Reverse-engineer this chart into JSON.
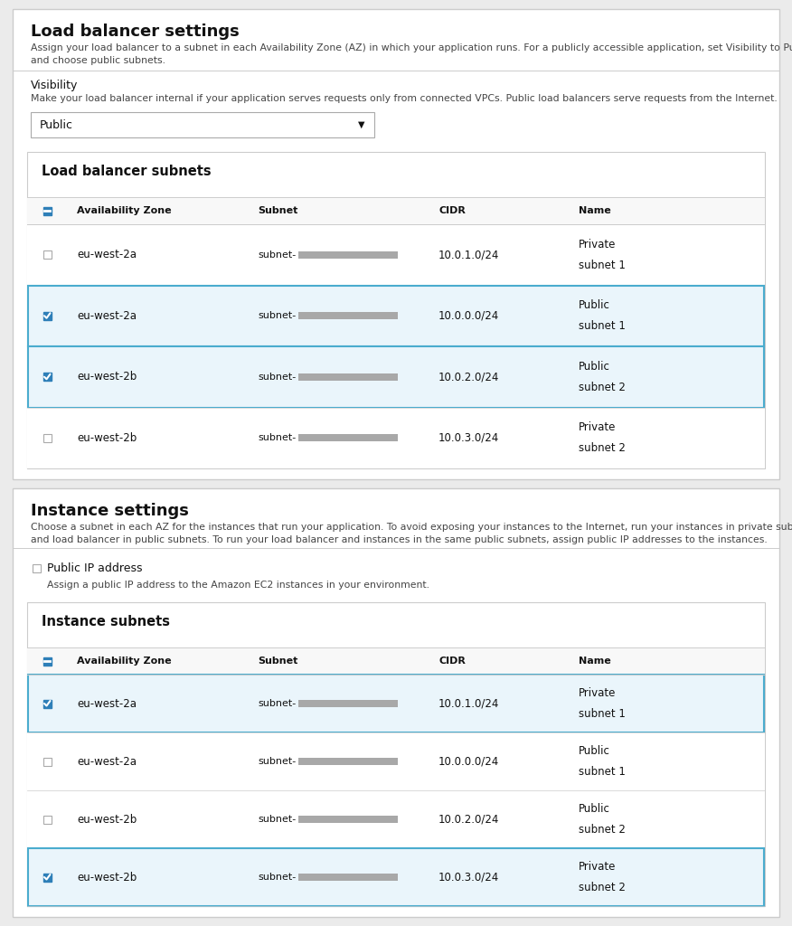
{
  "bg_color": "#ebebeb",
  "panel_bg": "#ffffff",
  "panel_border": "#cccccc",
  "table_bg": "#ffffff",
  "table_border": "#cccccc",
  "selected_row_bg": "#eaf5fb",
  "selected_row_border": "#4aacce",
  "header_bg": "#f8f8f8",
  "cb_blue": "#2e7fb8",
  "cb_border": "#aaaaaa",
  "text_dark": "#111111",
  "text_body": "#444444",
  "text_light": "#666666",
  "dropdown_border": "#aaaaaa",
  "subnet_bar_color": "#a8a8a8",
  "lb_section": {
    "title": "Load balancer settings",
    "desc1": "Assign your load balancer to a subnet in each Availability Zone (AZ) in which your application runs. For a publicly accessible application, set Visibility to Public",
    "desc2": "and choose public subnets.",
    "vis_label": "Visibility",
    "vis_hint": "Make your load balancer internal if your application serves requests only from connected VPCs. Public load balancers serve requests from the Internet.",
    "dropdown_val": "Public",
    "table_title": "Load balancer subnets",
    "col_headers": [
      "Availability Zone",
      "Subnet",
      "CIDR",
      "Name"
    ],
    "rows": [
      {
        "checked": false,
        "az": "eu-west-2a",
        "cidr": "10.0.1.0/24",
        "name1": "Private",
        "name2": "subnet 1",
        "selected": false
      },
      {
        "checked": true,
        "az": "eu-west-2a",
        "cidr": "10.0.0.0/24",
        "name1": "Public",
        "name2": "subnet 1",
        "selected": true
      },
      {
        "checked": true,
        "az": "eu-west-2b",
        "cidr": "10.0.2.0/24",
        "name1": "Public",
        "name2": "subnet 2",
        "selected": true
      },
      {
        "checked": false,
        "az": "eu-west-2b",
        "cidr": "10.0.3.0/24",
        "name1": "Private",
        "name2": "subnet 2",
        "selected": false
      }
    ]
  },
  "inst_section": {
    "title": "Instance settings",
    "desc1": "Choose a subnet in each AZ for the instances that run your application. To avoid exposing your instances to the Internet, run your instances in private subnets",
    "desc2": "and load balancer in public subnets. To run your load balancer and instances in the same public subnets, assign public IP addresses to the instances.",
    "pip_label": "Public IP address",
    "pip_hint": "Assign a public IP address to the Amazon EC2 instances in your environment.",
    "table_title": "Instance subnets",
    "col_headers": [
      "Availability Zone",
      "Subnet",
      "CIDR",
      "Name"
    ],
    "rows": [
      {
        "checked": true,
        "az": "eu-west-2a",
        "cidr": "10.0.1.0/24",
        "name1": "Private",
        "name2": "subnet 1",
        "selected": true
      },
      {
        "checked": false,
        "az": "eu-west-2a",
        "cidr": "10.0.0.0/24",
        "name1": "Public",
        "name2": "subnet 1",
        "selected": false
      },
      {
        "checked": false,
        "az": "eu-west-2b",
        "cidr": "10.0.2.0/24",
        "name1": "Public",
        "name2": "subnet 2",
        "selected": false
      },
      {
        "checked": true,
        "az": "eu-west-2b",
        "cidr": "10.0.3.0/24",
        "name1": "Private",
        "name2": "subnet 2",
        "selected": true
      }
    ]
  },
  "fig_w": 876,
  "fig_h": 1024
}
